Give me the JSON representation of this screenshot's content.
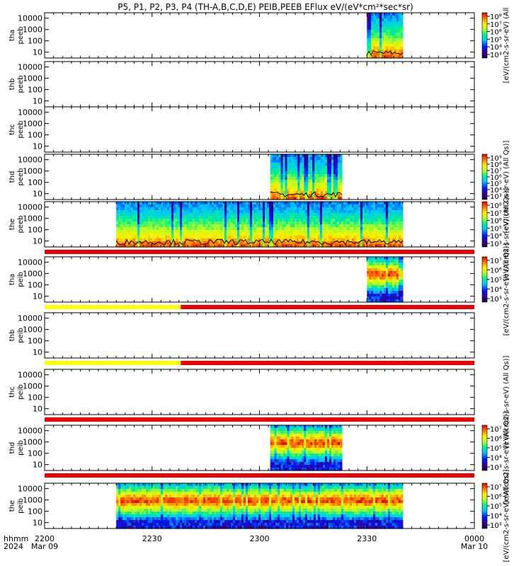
{
  "chart_data": {
    "type": "heatmap",
    "title": "P5, P1, P2, P3, P4 (TH-A,B,C,D,E) PEIB,PEEB EFlux eV/(eV*cm²*sec*sr)",
    "x_tick_labels": [
      "2200",
      "2230",
      "2300",
      "2330",
      "0000"
    ],
    "x_date_labels": [
      "Mar 09",
      "Mar 10"
    ],
    "x_axis_label": [
      "hhmm",
      "2024"
    ],
    "x_range_minutes": [
      0,
      120
    ],
    "y_scale": "log",
    "y_tick_labels": [
      "10",
      "100",
      "1000",
      "10000"
    ],
    "panels": [
      {
        "probe": "tha",
        "product": "peeb",
        "ylabel": [
          "tha",
          "peeb"
        ],
        "data_x_minutes": [
          [
            90,
            100
          ]
        ],
        "colorbar": {
          "ticks": [
            "10⁸",
            "10⁷",
            "10⁶",
            "10⁵",
            "10⁴",
            "10³"
          ],
          "label": "[eV/(cm2-s-sr-eV) (All"
        }
      },
      {
        "probe": "thb",
        "product": "peeb",
        "ylabel": [
          "thb",
          "peeb"
        ],
        "data_x_minutes": []
      },
      {
        "probe": "thc",
        "product": "peeb",
        "ylabel": [
          "thc",
          "peeb"
        ],
        "data_x_minutes": []
      },
      {
        "probe": "thd",
        "product": "peeb",
        "ylabel": [
          "thd",
          "peeb"
        ],
        "data_x_minutes": [
          [
            63,
            83
          ]
        ],
        "colorbar": {
          "ticks": [
            "10⁹",
            "10⁸",
            "10⁷",
            "10⁶",
            "10⁵",
            "10⁴",
            "10³"
          ],
          "label": "[eV/(cm2-s-sr-eV) (All Qs)]"
        }
      },
      {
        "probe": "the",
        "product": "peeb",
        "ylabel": [
          "the",
          "peeb"
        ],
        "data_x_minutes": [
          [
            20,
            100
          ]
        ],
        "colorbar": {
          "ticks": [
            "10⁸",
            "10⁷",
            "10⁶",
            "10⁵",
            "10⁴",
            "10³"
          ],
          "label": "[eV/(cm2-s-sr-eV) (All Qs)]"
        }
      },
      {
        "probe": "tha",
        "product": "peib",
        "ylabel": [
          "tha",
          "peib"
        ],
        "data_x_minutes": [
          [
            90,
            100
          ]
        ],
        "colorbar": {
          "ticks": [
            "10⁷",
            "10⁶",
            "10⁵",
            "10⁴",
            "10³"
          ],
          "label": "[eV/(cm2-s-sr-eV) (All Qs)]"
        }
      },
      {
        "probe": "thb",
        "product": "peib",
        "ylabel": [
          "thb",
          "peib"
        ],
        "data_x_minutes": []
      },
      {
        "probe": "thc",
        "product": "peib",
        "ylabel": [
          "thc",
          "peib"
        ],
        "data_x_minutes": [],
        "colorbar": {
          "ticks": [],
          "label": "[eV/(cm2-s-sr-eV) (All Qs)]"
        }
      },
      {
        "probe": "thd",
        "product": "peib",
        "ylabel": [
          "thd",
          "peib"
        ],
        "data_x_minutes": [
          [
            63,
            83
          ]
        ],
        "colorbar": {
          "ticks": [
            "10⁷",
            "10⁶",
            "10⁵",
            "10⁴",
            "10³"
          ],
          "label": "[eV/(cm2-s-sr-eV) (All Qs)]"
        }
      },
      {
        "probe": "the",
        "product": "peib",
        "ylabel": [
          "the",
          "peib"
        ],
        "data_x_minutes": [
          [
            20,
            100
          ]
        ],
        "colorbar": {
          "ticks": [
            "10⁷",
            "10⁶",
            "10⁵",
            "10⁴",
            "10³"
          ],
          "label": "[eV/(cm2-s-sr-eV) (All Qs)]"
        }
      }
    ],
    "mode_bars": [
      {
        "after_panel": 4,
        "segments": [
          {
            "x_minutes": [
              0,
              120
            ],
            "color": "#ee0000"
          }
        ]
      },
      {
        "after_panel": 5,
        "segments": [
          {
            "x_minutes": [
              0,
              38
            ],
            "color": "#ffff00"
          },
          {
            "x_minutes": [
              38,
              120
            ],
            "color": "#ee0000"
          }
        ]
      },
      {
        "after_panel": 6,
        "segments": [
          {
            "x_minutes": [
              0,
              38
            ],
            "color": "#ffff00"
          },
          {
            "x_minutes": [
              38,
              120
            ],
            "color": "#ee0000"
          }
        ]
      },
      {
        "after_panel": 7,
        "segments": [
          {
            "x_minutes": [
              0,
              120
            ],
            "color": "#ee0000"
          }
        ]
      },
      {
        "after_panel": 8,
        "segments": [
          {
            "x_minutes": [
              0,
              120
            ],
            "color": "#ee0000"
          }
        ]
      }
    ]
  }
}
